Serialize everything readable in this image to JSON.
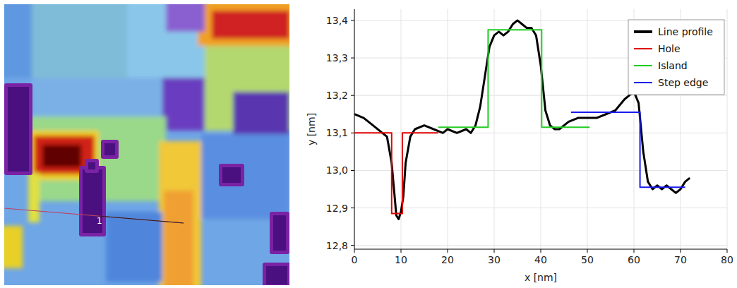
{
  "image_label": "1",
  "chart_data": {
    "type": "line",
    "x_label": "x [nm]",
    "y_label": "y [nm]",
    "xlim": [
      0,
      80
    ],
    "ylim": [
      12.79,
      13.43
    ],
    "xticks": [
      0,
      10,
      20,
      30,
      40,
      50,
      60,
      70,
      80
    ],
    "yticks": [
      {
        "value": 12.8,
        "label": "12,8"
      },
      {
        "value": 12.9,
        "label": "12,9"
      },
      {
        "value": 13.0,
        "label": "13,0"
      },
      {
        "value": 13.1,
        "label": "13,1"
      },
      {
        "value": 13.2,
        "label": "13,2"
      },
      {
        "value": 13.3,
        "label": "13,3"
      },
      {
        "value": 13.4,
        "label": "13,4"
      }
    ],
    "grid": true,
    "legend": "top-right",
    "series": [
      {
        "name": "Line profile",
        "color": "#000000",
        "x": [
          0,
          2,
          4,
          6,
          7,
          8,
          8.5,
          9,
          9.5,
          10,
          10.5,
          11,
          12,
          13,
          15,
          17,
          19,
          20,
          22,
          24,
          25,
          26,
          27,
          28,
          29,
          30,
          31,
          32,
          33,
          34,
          35,
          36,
          37,
          38,
          39,
          40,
          41,
          42,
          43,
          44,
          45,
          46,
          48,
          50,
          52,
          54,
          56,
          58,
          59,
          60,
          61,
          62,
          63,
          64,
          65,
          66,
          67,
          68,
          69,
          70,
          71,
          72
        ],
        "values": [
          13.15,
          13.14,
          13.12,
          13.1,
          13.09,
          13.02,
          12.95,
          12.88,
          12.87,
          12.89,
          12.93,
          13.02,
          13.09,
          13.11,
          13.12,
          13.11,
          13.1,
          13.11,
          13.1,
          13.11,
          13.1,
          13.12,
          13.17,
          13.25,
          13.33,
          13.36,
          13.37,
          13.36,
          13.37,
          13.39,
          13.4,
          13.39,
          13.38,
          13.38,
          13.36,
          13.28,
          13.16,
          13.12,
          13.11,
          13.11,
          13.12,
          13.13,
          13.14,
          13.14,
          13.14,
          13.15,
          13.16,
          13.19,
          13.2,
          13.21,
          13.18,
          13.05,
          12.97,
          12.95,
          12.96,
          12.95,
          12.96,
          12.95,
          12.94,
          12.95,
          12.97,
          12.98
        ]
      },
      {
        "name": "Hole",
        "color": "#e00000",
        "x": [
          0,
          8,
          8,
          10.3,
          10.3,
          18
        ],
        "values": [
          13.1,
          13.1,
          12.885,
          12.885,
          13.1,
          13.1
        ]
      },
      {
        "name": "Island",
        "color": "#22cc22",
        "x": [
          18,
          28.7,
          28.7,
          40.2,
          40.2,
          50.5
        ],
        "values": [
          13.115,
          13.115,
          13.375,
          13.375,
          13.115,
          13.115
        ]
      },
      {
        "name": "Step edge",
        "color": "#1a1aee",
        "x": [
          46.5,
          61.3,
          61.3,
          71
        ],
        "values": [
          13.155,
          13.155,
          12.955,
          12.955
        ]
      }
    ]
  }
}
